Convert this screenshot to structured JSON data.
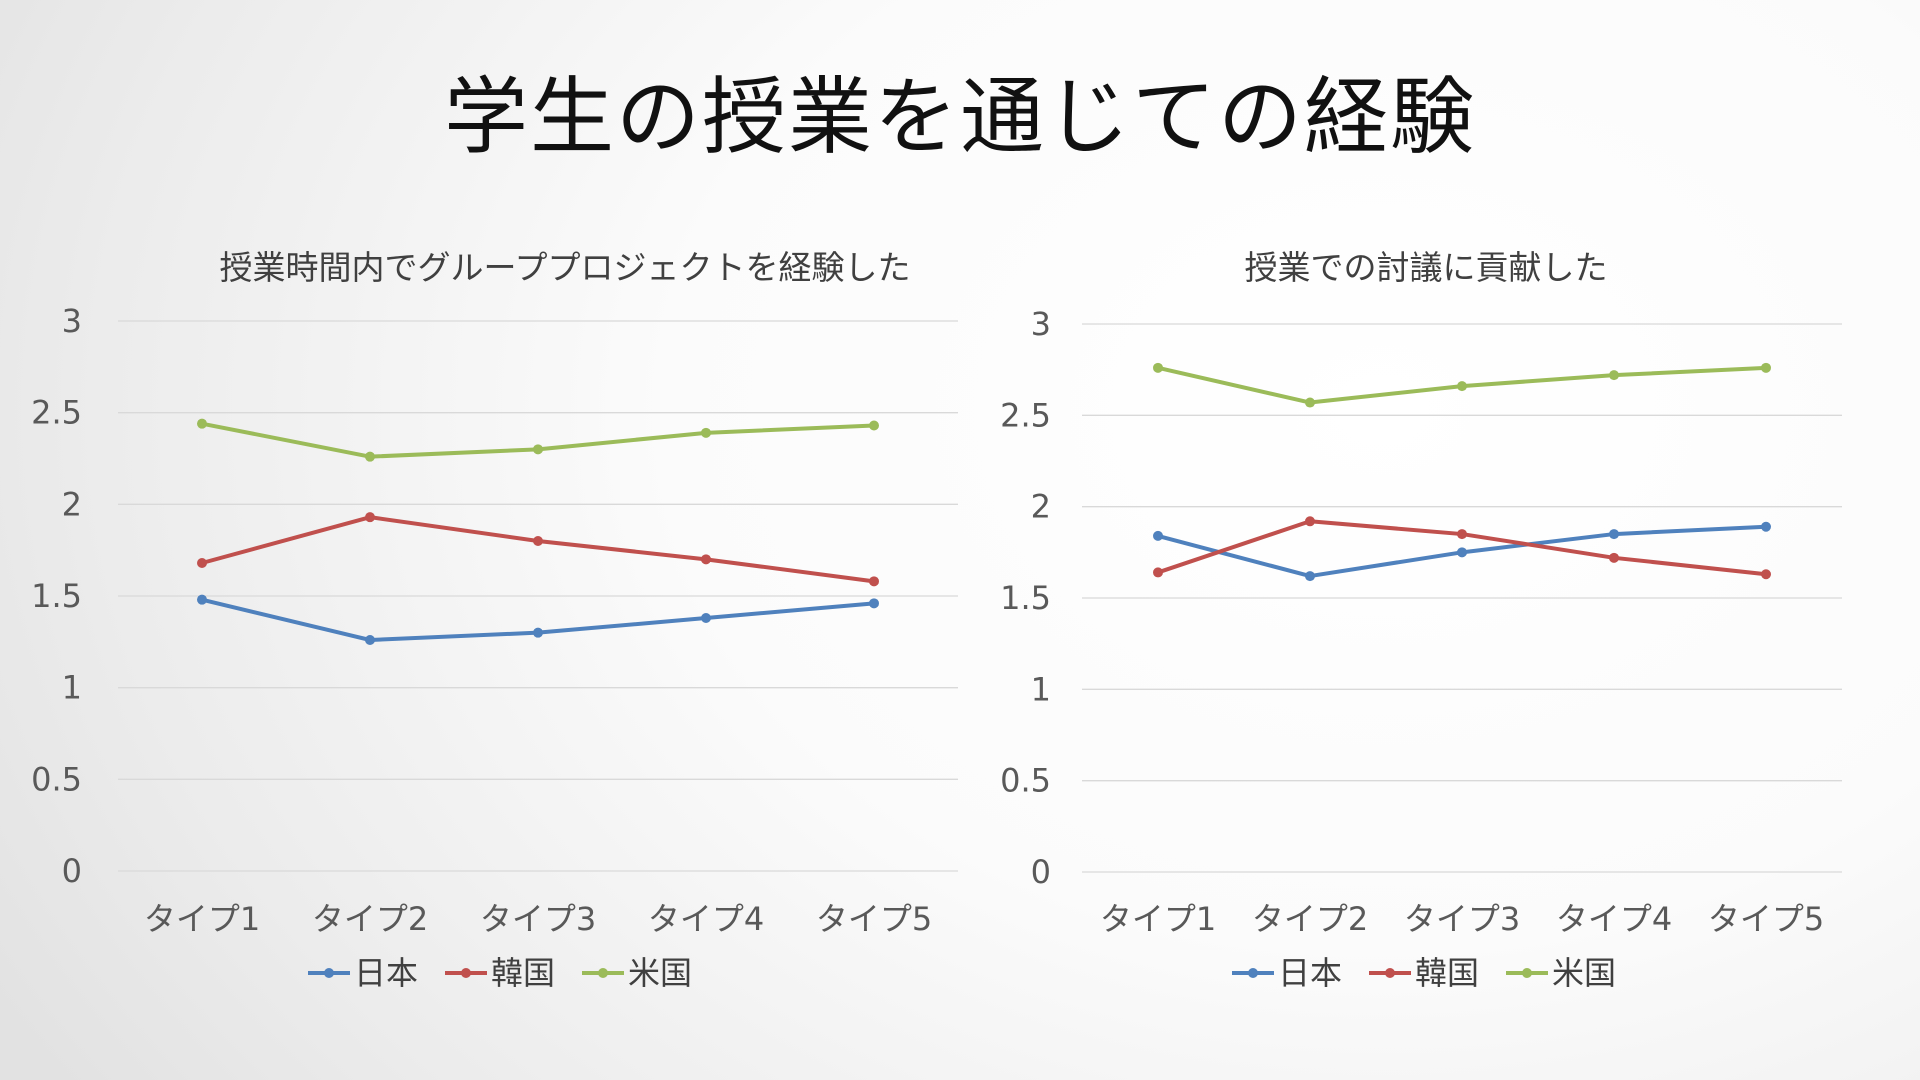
{
  "slide": {
    "title": "学生の授業を通じての経験"
  },
  "colors": {
    "japan": "#4f81bd",
    "korea": "#c0504d",
    "usa": "#9bbb59",
    "grid": "#d9d9d9"
  },
  "chart_data": [
    {
      "type": "line",
      "title": "授業時間内でグループプロジェクトを経験した",
      "categories": [
        "タイプ1",
        "タイプ2",
        "タイプ3",
        "タイプ4",
        "タイプ5"
      ],
      "ylim": [
        0,
        3
      ],
      "yticks": [
        "0",
        "0.5",
        "1",
        "1.5",
        "2",
        "2.5",
        "3"
      ],
      "grid": true,
      "legend": "bottom",
      "series": [
        {
          "name": "日本",
          "color": "#4f81bd",
          "values": [
            1.48,
            1.26,
            1.3,
            1.38,
            1.46
          ]
        },
        {
          "name": "韓国",
          "color": "#c0504d",
          "values": [
            1.68,
            1.93,
            1.8,
            1.7,
            1.58
          ]
        },
        {
          "name": "米国",
          "color": "#9bbb59",
          "values": [
            2.44,
            2.26,
            2.3,
            2.39,
            2.43
          ]
        }
      ]
    },
    {
      "type": "line",
      "title": "授業での討議に貢献した",
      "categories": [
        "タイプ1",
        "タイプ2",
        "タイプ3",
        "タイプ4",
        "タイプ5"
      ],
      "ylim": [
        0,
        3
      ],
      "yticks": [
        "0",
        "0.5",
        "1",
        "1.5",
        "2",
        "2.5",
        "3"
      ],
      "grid": true,
      "legend": "bottom",
      "series": [
        {
          "name": "日本",
          "color": "#4f81bd",
          "values": [
            1.84,
            1.62,
            1.75,
            1.85,
            1.89
          ]
        },
        {
          "name": "韓国",
          "color": "#c0504d",
          "values": [
            1.64,
            1.92,
            1.85,
            1.72,
            1.63
          ]
        },
        {
          "name": "米国",
          "color": "#9bbb59",
          "values": [
            2.76,
            2.57,
            2.66,
            2.72,
            2.76
          ]
        }
      ]
    }
  ]
}
